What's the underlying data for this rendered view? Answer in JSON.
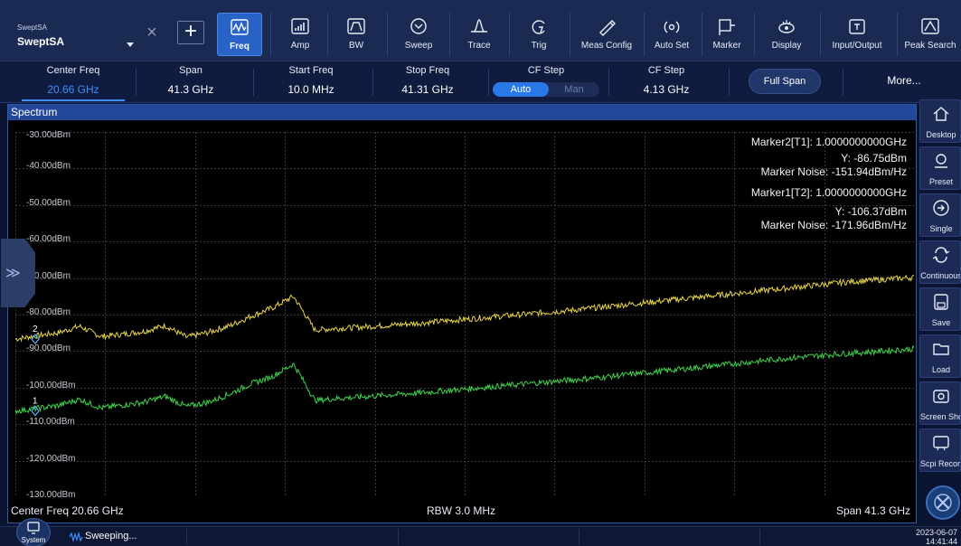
{
  "mode": {
    "small": "SweptSA",
    "big": "SweptSA"
  },
  "toolbar": {
    "items": [
      {
        "label": "Freq",
        "icon": "freq-icon",
        "active": true
      },
      {
        "label": "Amp",
        "icon": "amp-icon"
      },
      {
        "label": "BW",
        "icon": "bw-icon"
      },
      {
        "label": "Sweep",
        "icon": "sweep-icon"
      },
      {
        "label": "Trace",
        "icon": "trace-icon"
      },
      {
        "label": "Trig",
        "icon": "trig-icon"
      },
      {
        "label": "Meas Config",
        "icon": "meas-config-icon"
      },
      {
        "label": "Auto Set",
        "icon": "auto-set-icon"
      },
      {
        "label": "Marker",
        "icon": "marker-icon"
      },
      {
        "label": "Display",
        "icon": "display-icon"
      },
      {
        "label": "Input/Output",
        "icon": "input-output-icon"
      },
      {
        "label": "Peak Search",
        "icon": "peak-search-icon"
      }
    ]
  },
  "params": {
    "center_freq": {
      "label": "Center Freq",
      "value": "20.66 GHz"
    },
    "span": {
      "label": "Span",
      "value": "41.3 GHz"
    },
    "start_freq": {
      "label": "Start Freq",
      "value": "10.0 MHz"
    },
    "stop_freq": {
      "label": "Stop Freq",
      "value": "41.31 GHz"
    },
    "cf_step_mode": {
      "label": "CF Step",
      "auto": "Auto",
      "man": "Man"
    },
    "cf_step": {
      "label": "CF Step",
      "value": "4.13 GHz"
    },
    "full_span": "Full Span",
    "more": "More..."
  },
  "spectrum": {
    "title": "Spectrum",
    "y_labels": [
      "-30.00dBm",
      "-40.00dBm",
      "-50.00dBm",
      "-60.00dBm",
      "-70.00dBm",
      "-80.00dBm",
      "-90.00dBm",
      "-100.00dBm",
      "-110.00dBm",
      "-120.00dBm",
      "-130.00dBm"
    ],
    "y_range_dbm": [
      -130,
      -30
    ],
    "markers": {
      "m2_line1": "Marker2[T1]: 1.0000000000GHz",
      "m2_line2": "Y: -86.75dBm",
      "m2_line3": "Marker Noise: -151.94dBm/Hz",
      "m1_line1": "Marker1[T2]: 1.0000000000GHz",
      "m1_line2": "Y: -106.37dBm",
      "m1_line3": "Marker Noise: -171.96dBm/Hz"
    },
    "marker_labels": {
      "m2": "2",
      "m1": "1"
    },
    "traces": {
      "trace1_color": "#e7d44a",
      "trace2_color": "#3fd24b",
      "trace1_db": [
        -86.7,
        -85.8,
        -85.0,
        -83.2,
        -86.0,
        -85.4,
        -84.6,
        -83.0,
        -86.2,
        -84.9,
        -83.1,
        -80.5,
        -78.2,
        -75.0,
        -84.2,
        -83.8,
        -83.5,
        -83.1,
        -82.7,
        -82.3,
        -81.8,
        -81.3,
        -80.8,
        -80.3,
        -79.8,
        -79.3,
        -78.8,
        -78.2,
        -77.6,
        -77.0,
        -76.4,
        -75.8,
        -75.2,
        -74.6,
        -74.0,
        -73.4,
        -72.8,
        -72.2,
        -71.6,
        -71.0,
        -70.6,
        -70.2,
        -69.8
      ],
      "trace2_db": [
        -106.4,
        -105.7,
        -104.9,
        -103.2,
        -105.6,
        -104.8,
        -104.0,
        -102.4,
        -105.2,
        -104.0,
        -101.8,
        -99.0,
        -97.0,
        -93.5,
        -103.5,
        -103.0,
        -102.6,
        -102.2,
        -101.8,
        -101.4,
        -100.9,
        -100.4,
        -99.9,
        -99.4,
        -98.9,
        -98.4,
        -97.9,
        -97.4,
        -96.8,
        -96.2,
        -95.6,
        -95.0,
        -94.4,
        -93.8,
        -93.2,
        -92.6,
        -92.0,
        -91.5,
        -91.0,
        -90.6,
        -90.2,
        -89.8,
        -89.4
      ]
    },
    "footer": {
      "center": "Center Freq 20.66 GHz",
      "rbw": "RBW 3.0 MHz",
      "span": "Span 41.3 GHz"
    }
  },
  "sidebar": [
    {
      "label": "Desktop",
      "icon": "home-icon"
    },
    {
      "label": "Preset",
      "icon": "preset-icon"
    },
    {
      "label": "Single",
      "icon": "single-icon"
    },
    {
      "label": "Continuous",
      "icon": "continuous-icon"
    },
    {
      "label": "Save",
      "icon": "save-icon"
    },
    {
      "label": "Load",
      "icon": "load-icon"
    },
    {
      "label": "Screen Shot",
      "icon": "screenshot-icon"
    },
    {
      "label": "Scpi Record",
      "icon": "scpi-record-icon"
    }
  ],
  "status": {
    "system": "System",
    "sweeping": "Sweeping...",
    "date": "2023-06-07",
    "time": "14:41:44"
  }
}
